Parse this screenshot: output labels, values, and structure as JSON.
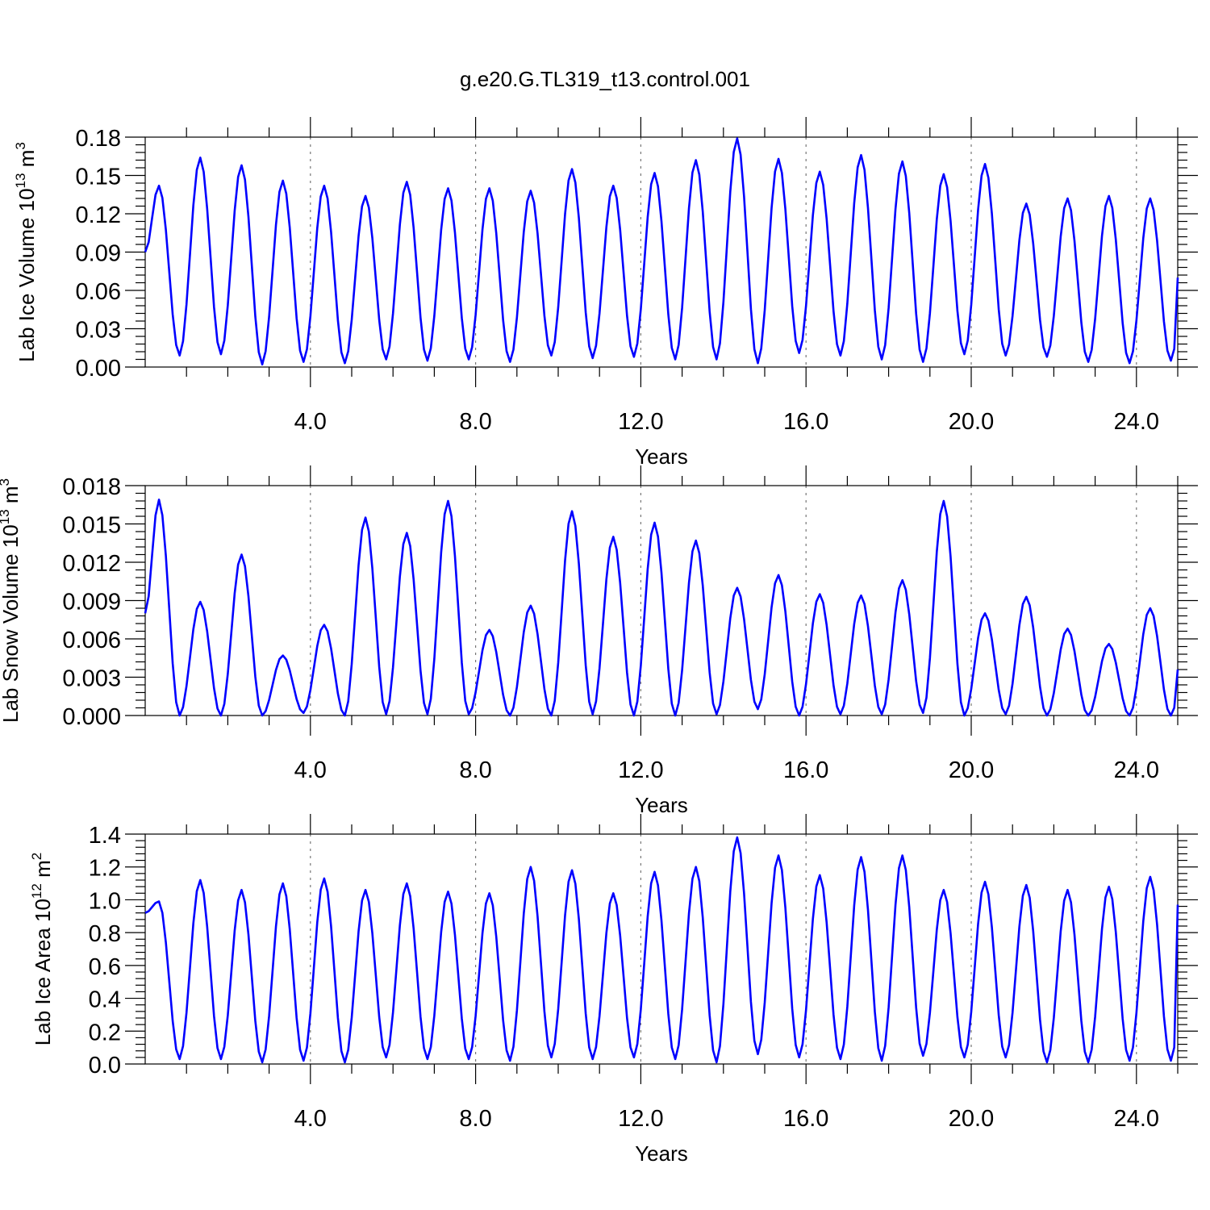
{
  "title": "g.e20.G.TL319_t13.control.001",
  "colors": {
    "series": "#0000ff",
    "axis": "#000000",
    "grid": "#777777"
  },
  "chart_data": [
    {
      "type": "line",
      "ylabel": "Lab Ice Volume 10",
      "ylabel_exp": "13",
      "ylabel_unit": " m",
      "ylabel_unit_exp": "3",
      "xlabel": "Years",
      "xlim": [
        0,
        25
      ],
      "ylim": [
        0,
        0.18
      ],
      "xticks": [
        4,
        8,
        12,
        16,
        20,
        24
      ],
      "xtick_labels": [
        "4.0",
        "8.0",
        "12.0",
        "16.0",
        "20.0",
        "24.0"
      ],
      "yticks": [
        0,
        0.03,
        0.06,
        0.09,
        0.12,
        0.15,
        0.18
      ],
      "ytick_labels": [
        "0.00",
        "0.03",
        "0.06",
        "0.09",
        "0.12",
        "0.15",
        "0.18"
      ],
      "grid": "dashed vertical at major x ticks",
      "series": [
        {
          "peaks": [
            0.142,
            0.164,
            0.158,
            0.146,
            0.142,
            0.134,
            0.145,
            0.14,
            0.14,
            0.138,
            0.155,
            0.142,
            0.152,
            0.162,
            0.179,
            0.163,
            0.153,
            0.166,
            0.161,
            0.151,
            0.159,
            0.128,
            0.132,
            0.134,
            0.132
          ],
          "troughs": [
            0.009,
            0.01,
            0.002,
            0.004,
            0.003,
            0.006,
            0.005,
            0.006,
            0.004,
            0.009,
            0.007,
            0.008,
            0.006,
            0.006,
            0.003,
            0.011,
            0.009,
            0.006,
            0.004,
            0.01,
            0.009,
            0.008,
            0.004,
            0.003,
            0.005
          ],
          "start": 0.09,
          "end": 0.07
        }
      ]
    },
    {
      "type": "line",
      "ylabel": "Lab Snow Volume 10",
      "ylabel_exp": "13",
      "ylabel_unit": " m",
      "ylabel_unit_exp": "3",
      "xlabel": "Years",
      "xlim": [
        0,
        25
      ],
      "ylim": [
        0,
        0.018
      ],
      "xticks": [
        4,
        8,
        12,
        16,
        20,
        24
      ],
      "xtick_labels": [
        "4.0",
        "8.0",
        "12.0",
        "16.0",
        "20.0",
        "24.0"
      ],
      "yticks": [
        0,
        0.003,
        0.006,
        0.009,
        0.012,
        0.015,
        0.018
      ],
      "ytick_labels": [
        "0.000",
        "0.003",
        "0.006",
        "0.009",
        "0.012",
        "0.015",
        "0.018"
      ],
      "grid": "dashed vertical at major x ticks",
      "series": [
        {
          "peaks": [
            0.0169,
            0.0089,
            0.0126,
            0.0047,
            0.0071,
            0.0155,
            0.0143,
            0.0168,
            0.0067,
            0.0086,
            0.016,
            0.014,
            0.0151,
            0.0137,
            0.01,
            0.011,
            0.0095,
            0.0094,
            0.0106,
            0.0168,
            0.008,
            0.0093,
            0.0068,
            0.0056,
            0.0084
          ],
          "troughs": [
            0.0,
            0.0,
            0.0,
            0.0002,
            0.0,
            0.0001,
            0.0001,
            0.0001,
            0.0,
            0.0,
            0.0001,
            0.0,
            0.0,
            0.0001,
            0.0005,
            0.0,
            0.0001,
            0.0001,
            0.0002,
            0.0,
            0.0001,
            0.0,
            0.0,
            0.0,
            0.0
          ],
          "start": 0.008,
          "end": 0.0036
        }
      ]
    },
    {
      "type": "line",
      "ylabel": "Lab Ice Area 10",
      "ylabel_exp": "12",
      "ylabel_unit": " m",
      "ylabel_unit_exp": "2",
      "xlabel": "Years",
      "xlim": [
        0,
        25
      ],
      "ylim": [
        0,
        1.4
      ],
      "xticks": [
        4,
        8,
        12,
        16,
        20,
        24
      ],
      "xtick_labels": [
        "4.0",
        "8.0",
        "12.0",
        "16.0",
        "20.0",
        "24.0"
      ],
      "yticks": [
        0,
        0.2,
        0.4,
        0.6,
        0.8,
        1.0,
        1.2,
        1.4
      ],
      "ytick_labels": [
        "0.0",
        "0.2",
        "0.4",
        "0.6",
        "0.8",
        "1.0",
        "1.2",
        "1.4"
      ],
      "grid": "dashed vertical at major x ticks",
      "series": [
        {
          "peaks": [
            0.99,
            1.12,
            1.06,
            1.1,
            1.13,
            1.06,
            1.1,
            1.05,
            1.04,
            1.2,
            1.18,
            1.04,
            1.17,
            1.2,
            1.38,
            1.27,
            1.15,
            1.26,
            1.27,
            1.06,
            1.11,
            1.09,
            1.06,
            1.08,
            1.14
          ],
          "troughs": [
            0.03,
            0.03,
            0.01,
            0.02,
            0.01,
            0.04,
            0.03,
            0.03,
            0.02,
            0.04,
            0.03,
            0.04,
            0.03,
            0.01,
            0.06,
            0.04,
            0.03,
            0.02,
            0.05,
            0.04,
            0.04,
            0.01,
            0.01,
            0.02,
            0.02
          ],
          "start": 0.92,
          "end": 0.97
        }
      ]
    }
  ]
}
